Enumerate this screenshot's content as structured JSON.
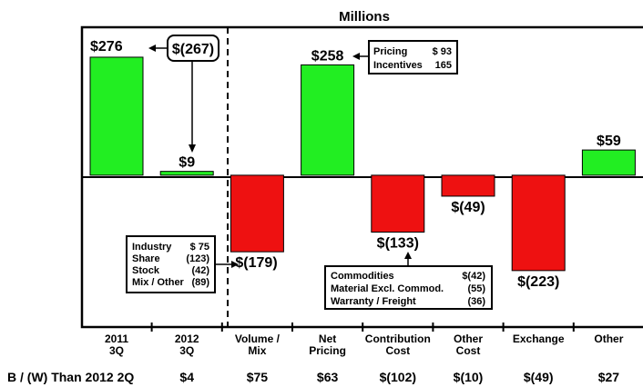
{
  "chart_data": {
    "type": "bar",
    "title": "Millions",
    "categories": [
      "2011\n3Q",
      "2012\n3Q",
      "Volume /\nMix",
      "Net\nPricing",
      "Contribution\nCost",
      "Other\nCost",
      "Exchange",
      "Other"
    ],
    "values": [
      276,
      9,
      -179,
      258,
      -133,
      -49,
      -223,
      59
    ],
    "value_labels": [
      "$276",
      "$9",
      "$(179)",
      "$258",
      "$(133)",
      "$(49)",
      "$(223)",
      "$59"
    ],
    "colors": {
      "positive": "#22ee22",
      "negative": "#ee1111"
    },
    "ylim": [
      -355,
      346
    ],
    "delta_label": "$(267)",
    "comparison_row": {
      "label": "B / (W) Than 2012 2Q",
      "values": [
        "$4",
        "$75",
        "$63",
        "$(102)",
        "$(10)",
        "$(49)",
        "$27"
      ]
    },
    "callouts": {
      "pricing": [
        {
          "label": "Pricing",
          "value": "$ 93"
        },
        {
          "label": "Incentives",
          "value": "165"
        }
      ],
      "volume_mix": [
        {
          "label": "Industry",
          "value": "$  75"
        },
        {
          "label": "Share",
          "value": "(123)"
        },
        {
          "label": "Stock",
          "value": "(42)"
        },
        {
          "label": "Mix / Other",
          "value": "(89)"
        }
      ],
      "contribution_cost": [
        {
          "label": "Commodities",
          "value": "$(42)"
        },
        {
          "label": "Material Excl. Commod.",
          "value": "(55)"
        },
        {
          "label": "Warranty / Freight",
          "value": "(36)"
        }
      ]
    }
  }
}
